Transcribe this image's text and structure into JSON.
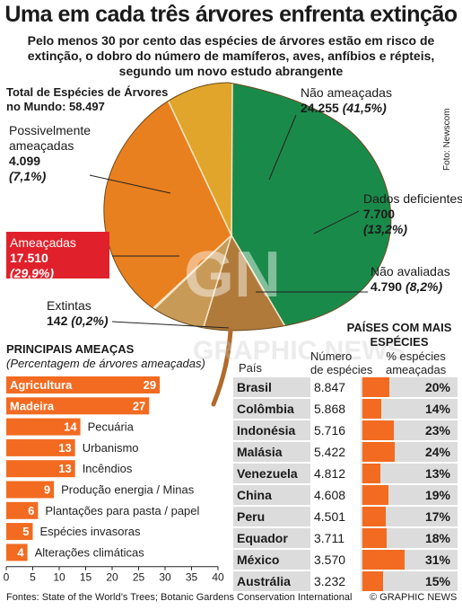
{
  "title": "Uma em cada três árvores enfrenta extinção",
  "subtitle": "Pelo menos 30 por cento das espécies de árvores estão em risco de extinção, o dobro do número de mamíferos, aves, anfíbios e répteis, segundo um novo estudo abrangente",
  "total": {
    "label_line1": "Total de Espécies de Árvores",
    "label_line2": "no Mundo:",
    "value": "58.497"
  },
  "photo_credit": "Foto: Newscom",
  "watermark": {
    "logo": "GN",
    "text": "GRAPHIC NEWS"
  },
  "colors": {
    "not_threatened": "#1a8a4a",
    "data_deficient": "#b07a3a",
    "not_evaluated": "#c89a58",
    "threatened": "#e8801f",
    "possibly_threatened": "#e0a52a",
    "extinct": "#9a5a2a",
    "threat_box": "#e0212b",
    "bar": "#f26b21"
  },
  "chart_data": [
    {
      "type": "pie",
      "title": "",
      "slices": [
        {
          "key": "not_threatened",
          "label": "Não ameaçadas",
          "value_text": "24.255",
          "pct_text": "(41,5%)",
          "pct": 41.5
        },
        {
          "key": "data_deficient",
          "label": "Dados deficientes",
          "value_text": "7.700",
          "pct_text": "(13,2%)",
          "pct": 13.2
        },
        {
          "key": "not_evaluated",
          "label": "Não avaliadas",
          "value_text": "4.790",
          "pct_text": "(8,2%)",
          "pct": 8.2
        },
        {
          "key": "extinct",
          "label": "Extintas",
          "value_text": "142",
          "pct_text": "(0,2%)",
          "pct": 0.2
        },
        {
          "key": "threatened",
          "label": "Ameaçadas",
          "value_text": "17.510",
          "pct_text": "(29,9%)",
          "pct": 29.9
        },
        {
          "key": "possibly_threatened",
          "label_line1": "Possivelmente",
          "label_line2": "ameaçadas",
          "value_text": "4.099",
          "pct_text": "(7,1%)",
          "pct": 7.1
        }
      ]
    },
    {
      "type": "bar",
      "title": "Principais Ameaças",
      "subtitle": "(Percentagem de árvores ameaçadas)",
      "categories": [
        "Agricultura",
        "Madeira",
        "Pecuária",
        "Urbanismo",
        "Incêndios",
        "Produção energia / Minas",
        "Plantações para pasta / papel",
        "Espécies invasoras",
        "Alterações climáticas"
      ],
      "values": [
        29,
        27,
        14,
        13,
        13,
        9,
        6,
        5,
        4
      ],
      "xlim": [
        0,
        40
      ],
      "xticks": [
        "0",
        "5",
        "10",
        "15",
        "20",
        "25",
        "30",
        "35",
        "40"
      ]
    },
    {
      "type": "table",
      "title_line1": "Países com Mais",
      "title_line2": "Espécies",
      "columns": [
        "País",
        "Número de espécies",
        "% espécies ameaçadas"
      ],
      "rows": [
        {
          "country": "Brasil",
          "species": "8.847",
          "pct_text": "20%",
          "pct": 20
        },
        {
          "country": "Colômbia",
          "species": "5.868",
          "pct_text": "14%",
          "pct": 14
        },
        {
          "country": "Indonésia",
          "species": "5.716",
          "pct_text": "23%",
          "pct": 23
        },
        {
          "country": "Malásia",
          "species": "5.422",
          "pct_text": "24%",
          "pct": 24
        },
        {
          "country": "Venezuela",
          "species": "4.812",
          "pct_text": "13%",
          "pct": 13
        },
        {
          "country": "China",
          "species": "4.608",
          "pct_text": "19%",
          "pct": 19
        },
        {
          "country": "Peru",
          "species": "4.501",
          "pct_text": "17%",
          "pct": 17
        },
        {
          "country": "Equador",
          "species": "3.711",
          "pct_text": "18%",
          "pct": 18
        },
        {
          "country": "México",
          "species": "3.570",
          "pct_text": "31%",
          "pct": 31
        },
        {
          "country": "Austrália",
          "species": "3.232",
          "pct_text": "15%",
          "pct": 15
        }
      ]
    }
  ],
  "col_headers": {
    "country": "País",
    "species_line1": "Número",
    "species_line2": "de espécies",
    "pct_line1": "% espécies",
    "pct_line2": "ameaçadas"
  },
  "sources": "Fontes: State of the World’s Trees; Botanic Gardens Conservation International",
  "credit": "© GRAPHIC NEWS"
}
